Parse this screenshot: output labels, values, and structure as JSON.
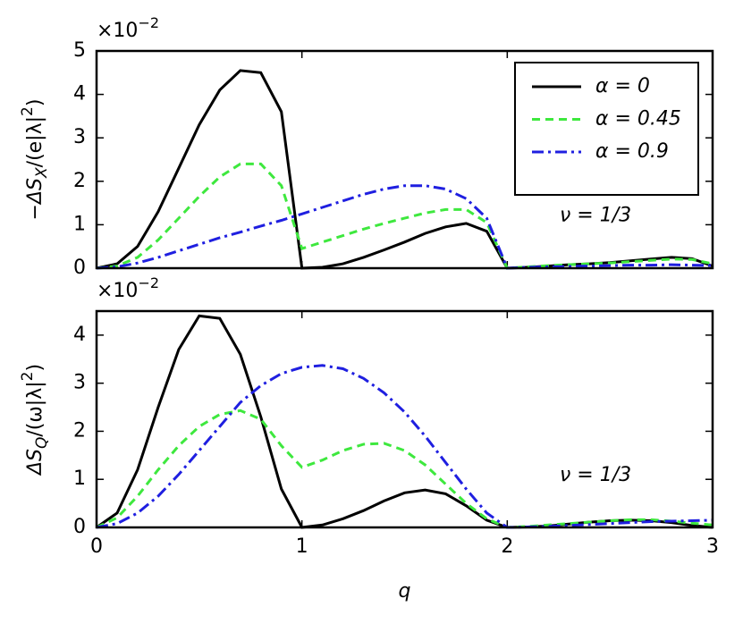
{
  "chart_data": [
    {
      "type": "line",
      "ylabel": {
        "prefix": "−ΔS",
        "subscript": "X",
        "middle": "/(e|λ|",
        "superscript": "2",
        "suffix": ")"
      },
      "multiplier": {
        "base": "×10",
        "exponent": "−2"
      },
      "annotation": "ν = 1/3",
      "x": [
        0,
        0.1,
        0.2,
        0.3,
        0.4,
        0.5,
        0.6,
        0.7,
        0.8,
        0.9,
        1,
        1.1,
        1.2,
        1.3,
        1.4,
        1.5,
        1.6,
        1.7,
        1.8,
        1.9,
        2,
        2.1,
        2.2,
        2.3,
        2.4,
        2.5,
        2.6,
        2.7,
        2.8,
        2.9,
        3
      ],
      "xlim": [
        0,
        3
      ],
      "xticks": [
        0,
        1,
        2,
        3
      ],
      "xtick_labels": false,
      "ylim": [
        0,
        5
      ],
      "yticks": [
        0,
        1,
        2,
        3,
        4,
        5
      ],
      "legend": "upper right",
      "series": [
        {
          "name": "α = 0",
          "color": "#000000",
          "linestyle": "solid",
          "values": [
            0,
            0.1,
            0.5,
            1.3,
            2.3,
            3.3,
            4.1,
            4.55,
            4.5,
            3.6,
            0,
            0.02,
            0.1,
            0.25,
            0.42,
            0.6,
            0.8,
            0.95,
            1.03,
            0.85,
            0,
            0.02,
            0.05,
            0.08,
            0.1,
            0.13,
            0.17,
            0.21,
            0.25,
            0.22,
            0.05
          ]
        },
        {
          "name": "α = 0.45",
          "color": "#3ee83e",
          "linestyle": "dashed",
          "values": [
            0,
            0.05,
            0.25,
            0.65,
            1.15,
            1.65,
            2.1,
            2.4,
            2.4,
            1.9,
            0.45,
            0.6,
            0.75,
            0.9,
            1.03,
            1.15,
            1.27,
            1.35,
            1.35,
            1.05,
            0,
            0.03,
            0.06,
            0.08,
            0.1,
            0.12,
            0.15,
            0.18,
            0.21,
            0.2,
            0.1
          ]
        },
        {
          "name": "α = 0.9",
          "color": "#1f1fe0",
          "linestyle": "dashdot",
          "values": [
            0,
            0.03,
            0.12,
            0.25,
            0.4,
            0.55,
            0.7,
            0.83,
            0.97,
            1.1,
            1.25,
            1.4,
            1.55,
            1.7,
            1.82,
            1.9,
            1.9,
            1.82,
            1.6,
            1.15,
            0,
            0.02,
            0.03,
            0.04,
            0.05,
            0.06,
            0.07,
            0.07,
            0.08,
            0.07,
            0.06
          ]
        }
      ]
    },
    {
      "type": "line",
      "ylabel": {
        "prefix": "ΔS",
        "subscript": "Q",
        "middle": "/(ω|λ|",
        "superscript": "2",
        "suffix": ")"
      },
      "multiplier": {
        "base": "×10",
        "exponent": "−2"
      },
      "annotation": "ν = 1/3",
      "xlabel": "q",
      "x": [
        0,
        0.1,
        0.2,
        0.3,
        0.4,
        0.5,
        0.6,
        0.7,
        0.8,
        0.9,
        1,
        1.1,
        1.2,
        1.3,
        1.4,
        1.5,
        1.6,
        1.7,
        1.8,
        1.9,
        2,
        2.1,
        2.2,
        2.3,
        2.4,
        2.5,
        2.6,
        2.7,
        2.8,
        2.9,
        3
      ],
      "xlim": [
        0,
        3
      ],
      "xticks": [
        0,
        1,
        2,
        3
      ],
      "xtick_labels": true,
      "ylim": [
        0,
        4.5
      ],
      "yticks": [
        0,
        1,
        2,
        3,
        4
      ],
      "series": [
        {
          "color": "#000000",
          "linestyle": "solid",
          "values": [
            0,
            0.3,
            1.2,
            2.5,
            3.7,
            4.4,
            4.35,
            3.6,
            2.3,
            0.8,
            0,
            0.05,
            0.18,
            0.35,
            0.55,
            0.72,
            0.78,
            0.7,
            0.45,
            0.15,
            0,
            0.01,
            0.03,
            0.07,
            0.11,
            0.14,
            0.15,
            0.14,
            0.1,
            0.04,
            0
          ]
        },
        {
          "color": "#3ee83e",
          "linestyle": "dashed",
          "values": [
            0,
            0.2,
            0.65,
            1.2,
            1.7,
            2.1,
            2.35,
            2.43,
            2.25,
            1.7,
            1.25,
            1.4,
            1.6,
            1.73,
            1.75,
            1.6,
            1.3,
            0.9,
            0.5,
            0.18,
            0,
            0.02,
            0.05,
            0.08,
            0.11,
            0.14,
            0.16,
            0.16,
            0.13,
            0.09,
            0.05
          ]
        },
        {
          "color": "#1f1fe0",
          "linestyle": "dashdot",
          "values": [
            0,
            0.08,
            0.3,
            0.65,
            1.1,
            1.6,
            2.1,
            2.6,
            2.95,
            3.2,
            3.33,
            3.37,
            3.3,
            3.1,
            2.8,
            2.4,
            1.9,
            1.35,
            0.8,
            0.3,
            0,
            0.01,
            0.02,
            0.04,
            0.06,
            0.08,
            0.1,
            0.12,
            0.13,
            0.14,
            0.15
          ]
        }
      ]
    }
  ]
}
